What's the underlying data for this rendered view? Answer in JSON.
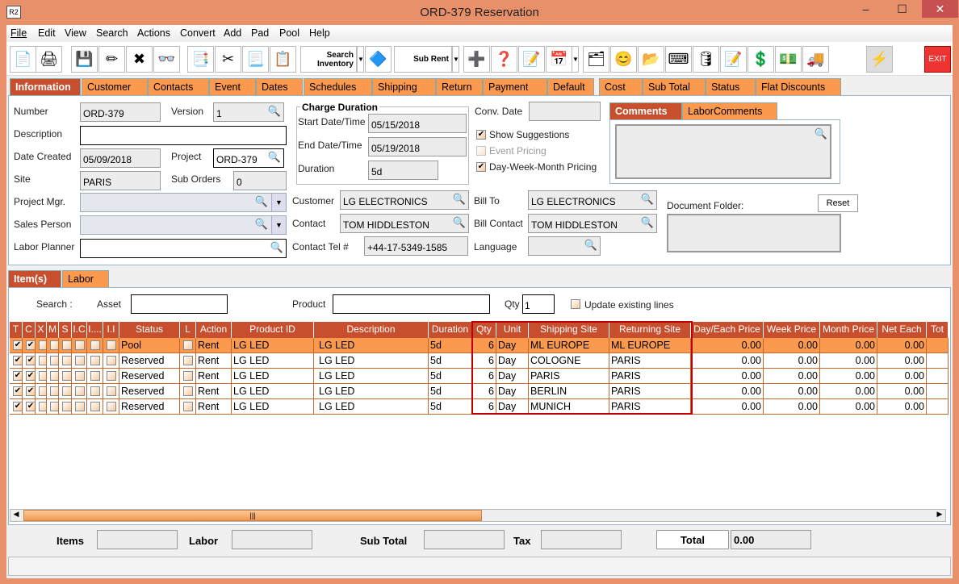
{
  "window": {
    "title": "ORD-379 Reservation",
    "app_icon": "R2",
    "minimize": "–",
    "maximize": "☐",
    "close": "✕"
  },
  "menu": [
    "File",
    "Edit",
    "View",
    "Search",
    "Actions",
    "Convert",
    "Add",
    "Pad",
    "Pool",
    "Help"
  ],
  "toolbar": {
    "search_inventory": "Search Inventory",
    "sub_rent": "Sub Rent",
    "exit": "EXIT",
    "icons": [
      "new-document-icon",
      "print-icon",
      "save-icon",
      "edit-pencil-icon",
      "delete-x-icon",
      "binoculars-icon",
      "copy-to-icon",
      "cut-icon",
      "copy-icon",
      "paste-icon",
      "search-inventory-icon",
      "shapes-icon",
      "sub-rent-icon",
      "add-remove-icon",
      "balls-help-icon",
      "notepad-edit-icon",
      "calendar-icon",
      "hierarchy-icon",
      "smiley-icon",
      "folder-clock-icon",
      "keyboard-key-icon",
      "stacked-barrels-icon",
      "document-edit-icon",
      "money-forward-icon",
      "money-note-icon",
      "truck-icon",
      "lightning-icon"
    ]
  },
  "tabs": [
    "Information",
    "Customer",
    "Contacts",
    "Event",
    "Dates",
    "Schedules",
    "Shipping",
    "Return",
    "Payment",
    "Default",
    "Cost",
    "Sub Total",
    "Status",
    "Flat Discounts"
  ],
  "info": {
    "number_label": "Number",
    "number": "ORD-379",
    "version_label": "Version",
    "version": "1",
    "description_label": "Description",
    "description": "",
    "date_created_label": "Date Created",
    "date_created": "05/09/2018",
    "project_label": "Project",
    "project": "ORD-379",
    "site_label": "Site",
    "site": "PARIS",
    "sub_orders_label": "Sub Orders",
    "sub_orders": "0",
    "project_mgr_label": "Project Mgr.",
    "project_mgr": "",
    "sales_person_label": "Sales Person",
    "sales_person": "",
    "labor_planner_label": "Labor Planner",
    "labor_planner": "",
    "charge_duration_title": "Charge Duration",
    "start_label": "Start Date/Time",
    "start": "05/15/2018",
    "end_label": "End Date/Time",
    "end": "05/19/2018",
    "duration_label": "Duration",
    "duration": "5d",
    "conv_date_label": "Conv. Date",
    "conv_date": "",
    "show_suggestions": "Show Suggestions",
    "show_suggestions_checked": true,
    "event_pricing": "Event Pricing",
    "event_pricing_checked": false,
    "dwm_pricing": "Day-Week-Month Pricing",
    "dwm_pricing_checked": true,
    "customer_label": "Customer",
    "customer": "LG ELECTRONICS",
    "contact_label": "Contact",
    "contact": "TOM HIDDLESTON",
    "contact_tel_label": "Contact Tel #",
    "contact_tel": "+44-17-5349-1585",
    "bill_to_label": "Bill To",
    "bill_to": "LG ELECTRONICS",
    "bill_contact_label": "Bill Contact",
    "bill_contact": "TOM HIDDLESTON",
    "language_label": "Language",
    "language": "",
    "comments_tabs": [
      "Comments",
      "LaborComments"
    ],
    "document_folder_label": "Document Folder:",
    "reset": "Reset"
  },
  "items_tabs": [
    "Item(s)",
    "Labor"
  ],
  "filter": {
    "search_label": "Search :",
    "asset_label": "Asset",
    "asset": "",
    "product_label": "Product",
    "product": "",
    "qty_label": "Qty",
    "qty": "1",
    "update_label": "Update existing lines"
  },
  "grid": {
    "columns": [
      "T",
      "C",
      "X",
      "M",
      "S",
      "I.C",
      "I....",
      "I.I",
      "Status",
      "L",
      "Action",
      "Product ID",
      "Description",
      "Duration",
      "Qty",
      "Unit",
      "Shipping Site",
      "Returning Site",
      "Day/Each Price",
      "Week Price",
      "Month Price",
      "Net Each",
      "Tot"
    ],
    "rows": [
      {
        "T": true,
        "C": true,
        "status": "Pool",
        "action": "Rent",
        "product_id": "LG LED",
        "description": "LG LED",
        "duration": "5d",
        "qty": "6",
        "unit": "Day",
        "shipping": "ML EUROPE",
        "returning": "ML EUROPE",
        "day": "0.00",
        "week": "0.00",
        "month": "0.00",
        "net": "0.00",
        "selected": true
      },
      {
        "T": true,
        "C": true,
        "status": "Reserved",
        "action": "Rent",
        "product_id": "LG LED",
        "description": "LG LED",
        "duration": "5d",
        "qty": "6",
        "unit": "Day",
        "shipping": "COLOGNE",
        "returning": "PARIS",
        "day": "0.00",
        "week": "0.00",
        "month": "0.00",
        "net": "0.00"
      },
      {
        "T": true,
        "C": true,
        "status": "Reserved",
        "action": "Rent",
        "product_id": "LG LED",
        "description": "LG LED",
        "duration": "5d",
        "qty": "6",
        "unit": "Day",
        "shipping": "PARIS",
        "returning": "PARIS",
        "day": "0.00",
        "week": "0.00",
        "month": "0.00",
        "net": "0.00"
      },
      {
        "T": true,
        "C": true,
        "status": "Reserved",
        "action": "Rent",
        "product_id": "LG LED",
        "description": "LG LED",
        "duration": "5d",
        "qty": "6",
        "unit": "Day",
        "shipping": "BERLIN",
        "returning": "PARIS",
        "day": "0.00",
        "week": "0.00",
        "month": "0.00",
        "net": "0.00"
      },
      {
        "T": true,
        "C": true,
        "status": "Reserved",
        "action": "Rent",
        "product_id": "LG LED",
        "description": "LG LED",
        "duration": "5d",
        "qty": "6",
        "unit": "Day",
        "shipping": "MUNICH",
        "returning": "PARIS",
        "day": "0.00",
        "week": "0.00",
        "month": "0.00",
        "net": "0.00"
      }
    ]
  },
  "totals": {
    "items_label": "Items",
    "items": "",
    "labor_label": "Labor",
    "labor": "",
    "subtotal_label": "Sub Total",
    "subtotal": "",
    "tax_label": "Tax",
    "tax": "",
    "total_label": "Total",
    "total": "0.00"
  },
  "colors": {
    "accent": "#c84f2e",
    "tab": "#fb9a4f",
    "window": "#e8906a",
    "highlight_box": "#c00000"
  }
}
